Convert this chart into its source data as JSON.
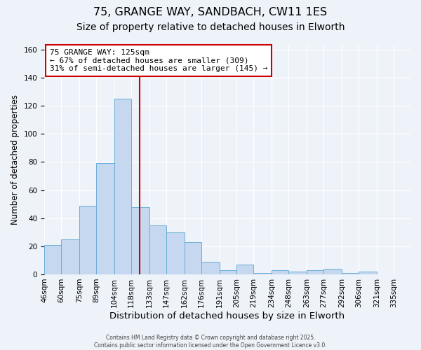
{
  "title": "75, GRANGE WAY, SANDBACH, CW11 1ES",
  "subtitle": "Size of property relative to detached houses in Elworth",
  "xlabel": "Distribution of detached houses by size in Elworth",
  "ylabel": "Number of detached properties",
  "bar_labels": [
    "46sqm",
    "60sqm",
    "75sqm",
    "89sqm",
    "104sqm",
    "118sqm",
    "133sqm",
    "147sqm",
    "162sqm",
    "176sqm",
    "191sqm",
    "205sqm",
    "219sqm",
    "234sqm",
    "248sqm",
    "263sqm",
    "277sqm",
    "292sqm",
    "306sqm",
    "321sqm",
    "335sqm"
  ],
  "bar_values": [
    21,
    25,
    49,
    79,
    125,
    48,
    35,
    30,
    23,
    9,
    3,
    7,
    1,
    3,
    2,
    3,
    4,
    1,
    2,
    0
  ],
  "bin_edges": [
    46,
    60,
    75,
    89,
    104,
    118,
    133,
    147,
    162,
    176,
    191,
    205,
    219,
    234,
    248,
    263,
    277,
    292,
    306,
    321,
    335
  ],
  "bar_color": "#c5d8f0",
  "bar_edge_color": "#6baed6",
  "vline_x": 125,
  "vline_color": "#cc0000",
  "annotation_title": "75 GRANGE WAY: 125sqm",
  "annotation_line1": "← 67% of detached houses are smaller (309)",
  "annotation_line2": "31% of semi-detached houses are larger (145) →",
  "annotation_box_color": "white",
  "annotation_box_edge_color": "#cc0000",
  "ylim": [
    0,
    163
  ],
  "xlim_left": 46,
  "xlim_right": 349,
  "background_color": "#eef2f9",
  "grid_color": "white",
  "footer1": "Contains HM Land Registry data © Crown copyright and database right 2025.",
  "footer2": "Contains public sector information licensed under the Open Government Licence v3.0.",
  "title_fontsize": 11.5,
  "subtitle_fontsize": 10,
  "xlabel_fontsize": 9.5,
  "ylabel_fontsize": 8.5,
  "tick_fontsize": 7.5,
  "annotation_fontsize": 8,
  "footer_fontsize": 5.5
}
